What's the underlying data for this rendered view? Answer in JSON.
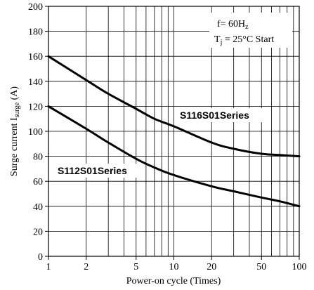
{
  "chart_data": {
    "type": "line",
    "xscale": "log",
    "xlim": [
      1,
      100
    ],
    "ylim": [
      0,
      200
    ],
    "grid": true,
    "xlabel": "Power-on cycle (Times)",
    "ylabel_main": "Surge current I",
    "ylabel_sub": "surge",
    "ylabel_unit": " (A)",
    "x_ticks": [
      1,
      2,
      5,
      10,
      20,
      50,
      100
    ],
    "x_tick_labels": [
      "1",
      "2",
      "5",
      "10",
      "20",
      "50",
      "100"
    ],
    "y_ticks": [
      0,
      20,
      40,
      60,
      80,
      100,
      120,
      140,
      160,
      180,
      200
    ],
    "y_tick_labels": [
      "0",
      "20",
      "40",
      "60",
      "80",
      "100",
      "120",
      "140",
      "160",
      "180",
      "200"
    ],
    "annotation": {
      "line1": "f=  60H",
      "line1_sub": "z",
      "line2": "T",
      "line2_sub": "j",
      "line2_rest": "  =  25°C Start"
    },
    "series": [
      {
        "name": "S116S01Series",
        "x": [
          1,
          2,
          3,
          5,
          7,
          10,
          20,
          30,
          50,
          70,
          100
        ],
        "y": [
          160,
          141,
          130,
          118,
          110,
          104,
          91,
          86,
          82,
          81,
          80
        ]
      },
      {
        "name": "S112S01Series",
        "x": [
          1,
          2,
          3,
          5,
          7,
          10,
          20,
          30,
          50,
          70,
          100
        ],
        "y": [
          120,
          102,
          91,
          78,
          71,
          65,
          56,
          52,
          47,
          44,
          40
        ]
      }
    ]
  }
}
